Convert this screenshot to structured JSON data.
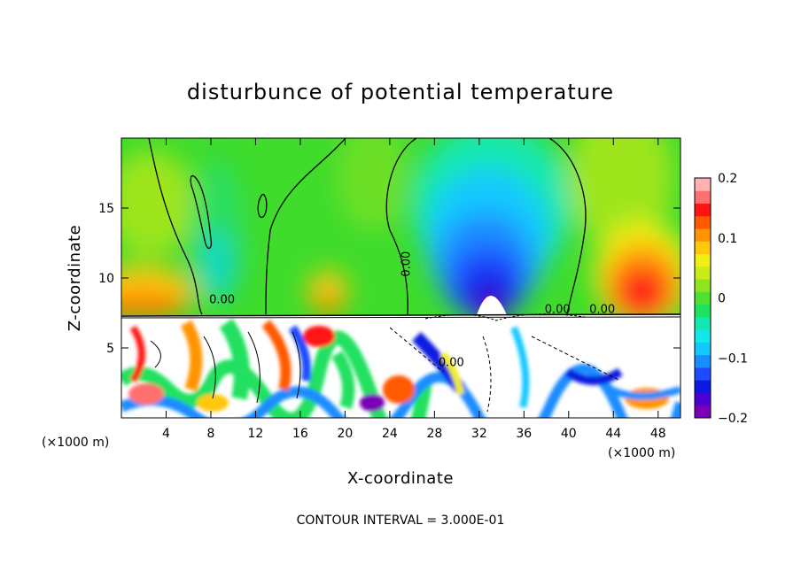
{
  "chart_data": {
    "type": "heatmap",
    "title": "disturbunce of potential temperature",
    "xlabel": "X-coordinate",
    "ylabel": "Z-coordinate",
    "x_unit": "(×1000 m)",
    "xlim": [
      0,
      50
    ],
    "ylim": [
      0,
      20
    ],
    "x_ticks": [
      4,
      8,
      12,
      16,
      20,
      24,
      28,
      32,
      36,
      40,
      44,
      48
    ],
    "y_ticks": [
      5,
      10,
      15
    ],
    "colorbar": {
      "range": [
        -0.2,
        0.2
      ],
      "ticks": [
        0.2,
        0.1,
        0,
        -0.1,
        -0.2
      ],
      "tick_labels": [
        "0.2",
        "0.1",
        "0",
        "−0.1",
        "−0.2"
      ],
      "colors": [
        "#7a00b8",
        "#4b00d6",
        "#0a1adf",
        "#1f4bff",
        "#1a8cff",
        "#14c8ff",
        "#12e8e8",
        "#12e8b0",
        "#20e060",
        "#50e030",
        "#8ee41e",
        "#c8ec16",
        "#f2ee14",
        "#ffc80a",
        "#ff9400",
        "#ff5a00",
        "#ff1414",
        "#ff7070",
        "#ffb0b0"
      ]
    },
    "contour_labels": [
      {
        "text": "0.00",
        "x": 9,
        "z": 8.2
      },
      {
        "text": "0.00",
        "x": 25.8,
        "z": 11
      },
      {
        "text": "0.00",
        "x": 39,
        "z": 7.5
      },
      {
        "text": "0.00",
        "x": 43,
        "z": 7.5
      },
      {
        "text": "0.00",
        "x": 29.5,
        "z": 3.7
      }
    ],
    "note": "CONTOUR INTERVAL = 3.000E-01"
  }
}
